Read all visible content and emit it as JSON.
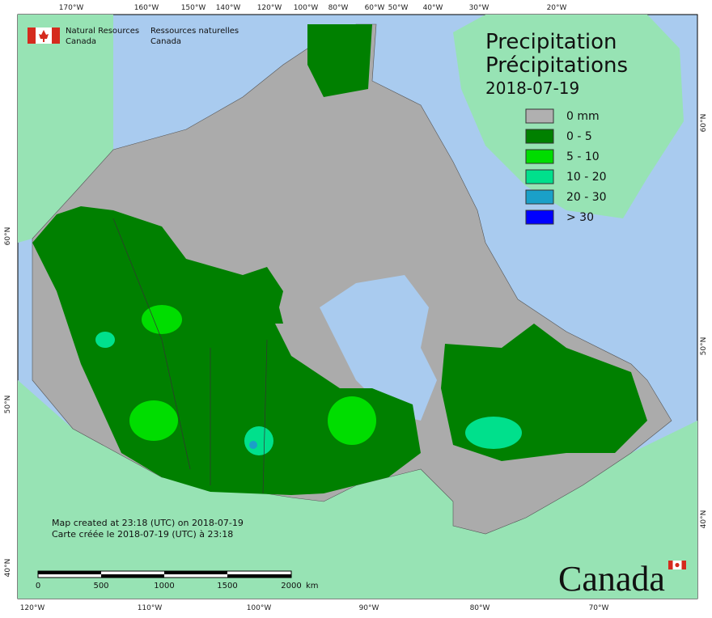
{
  "header": {
    "title_en": "Precipitation",
    "title_fr": "Précipitations",
    "date": "2018-07-19"
  },
  "agency": {
    "en": [
      "Natural Resources",
      "Canada"
    ],
    "fr": [
      "Ressources naturelles",
      "Canada"
    ]
  },
  "legend": [
    {
      "label": "0 mm",
      "color": "#b0b0b0"
    },
    {
      "label": "0 - 5",
      "color": "#008000"
    },
    {
      "label": "5 - 10",
      "color": "#00dd00"
    },
    {
      "label": "10 - 20",
      "color": "#00e08c"
    },
    {
      "label": "20 - 30",
      "color": "#1aa0c8"
    },
    {
      "label": "> 30",
      "color": "#0000ff"
    }
  ],
  "graticule": {
    "top": [
      "170°W",
      "160°W",
      "150°W",
      "140°W",
      "120°W",
      "100°W",
      "80°W",
      "60°W",
      "50°W",
      "40°W",
      "30°W",
      "20°W"
    ],
    "bottom": [
      "120°W",
      "110°W",
      "100°W",
      "90°W",
      "80°W",
      "70°W"
    ],
    "left": [
      "60°N",
      "50°N",
      "40°N"
    ],
    "right": [
      "60°N",
      "50°N",
      "40°N"
    ]
  },
  "scale_bar": {
    "labels": [
      "0",
      "500",
      "1000",
      "1500",
      "2000"
    ],
    "unit": "km"
  },
  "credits": [
    "Map created at 23:18 (UTC) on 2018-07-19",
    "Carte créée le 2018-07-19 (UTC) à 23:18"
  ],
  "wordmark": "Canada"
}
